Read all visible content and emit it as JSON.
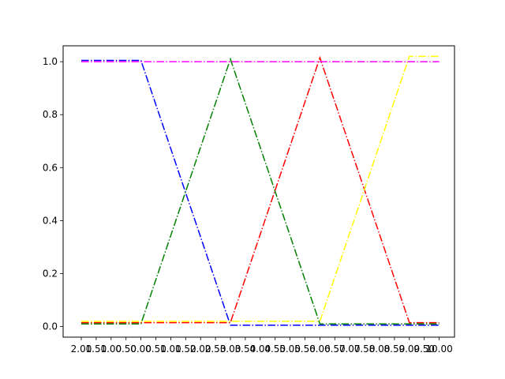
{
  "chart_data": {
    "type": "line",
    "title": "",
    "xlabel": "",
    "ylabel": "",
    "x_tick_labels": [
      "2.00",
      "1.50",
      "1.00",
      "0.50",
      "0.00",
      "0.50",
      "1.00",
      "1.50",
      "2.00",
      "2.50",
      "3.00",
      "3.50",
      "4.00",
      "4.50",
      "5.00",
      "5.50",
      "6.00",
      "6.50",
      "7.00",
      "7.50",
      "8.00",
      "8.50",
      "9.00",
      "9.50",
      "10.00"
    ],
    "y_ticks": [
      "0.0",
      "0.2",
      "0.4",
      "0.6",
      "0.8",
      "1.0"
    ],
    "ylim": [
      -0.04,
      1.06
    ],
    "grid": false,
    "legend": "none",
    "series": [
      {
        "color": "#0000ff",
        "dash": "dashdot",
        "x": [
          0,
          4,
          10,
          24
        ],
        "y": [
          1.005,
          1.005,
          0.005,
          0.005
        ]
      },
      {
        "color": "#008000",
        "dash": "dashdot",
        "x": [
          0,
          4,
          10,
          16,
          24
        ],
        "y": [
          0.01,
          0.01,
          1.01,
          0.01,
          0.01
        ]
      },
      {
        "color": "#ff0000",
        "dash": "dashdot",
        "x": [
          0,
          10,
          16,
          22,
          24
        ],
        "y": [
          0.015,
          0.015,
          1.015,
          0.015,
          0.015
        ]
      },
      {
        "color": "#ffff00",
        "dash": "dashdot",
        "x": [
          0,
          16,
          22,
          24
        ],
        "y": [
          0.02,
          0.02,
          1.02,
          1.02
        ]
      },
      {
        "color": "#ff00ff",
        "dash": "dashdot",
        "x": [
          0,
          24
        ],
        "y": [
          1.0,
          1.0
        ]
      }
    ]
  }
}
